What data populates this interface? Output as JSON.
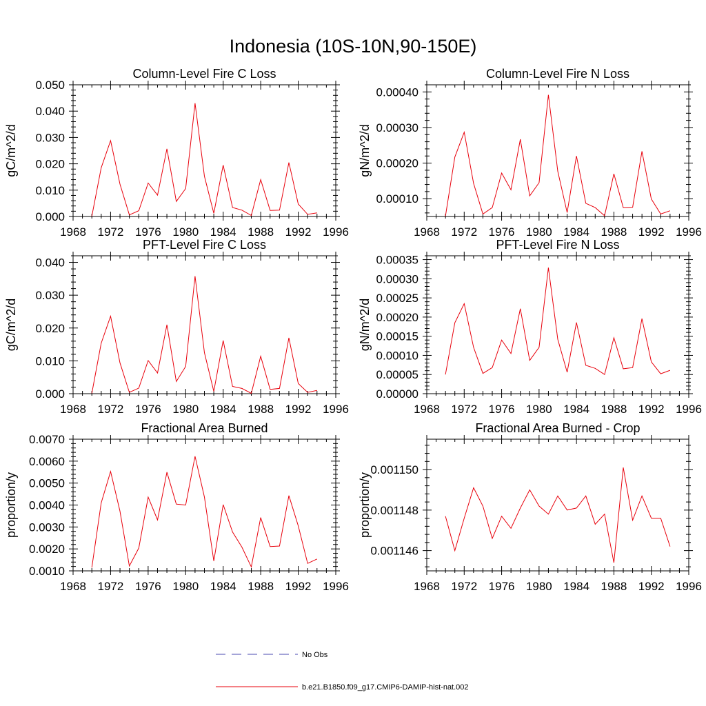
{
  "figure": {
    "title": "Indonesia (10S-10N,90-150E)",
    "legend": {
      "entries": [
        {
          "label": "No Obs",
          "color": "#4a4ab0",
          "style": "dashed"
        },
        {
          "label": "b.e21.B1850.f09_g17.CMIP6-DAMIP-hist-nat.002",
          "color": "#e8000b",
          "style": "solid"
        }
      ]
    }
  },
  "chart_data": [
    {
      "type": "line",
      "title": "Column-Level Fire C Loss",
      "ylabel": "gC/m^2/d",
      "xlim": [
        1968,
        1996
      ],
      "ylim": [
        0,
        0.05
      ],
      "xticks": [
        "1968",
        "1972",
        "1976",
        "1980",
        "1984",
        "1988",
        "1992",
        "1996"
      ],
      "yticks": [
        "0.000",
        "0.010",
        "0.020",
        "0.030",
        "0.040",
        "0.050"
      ],
      "series": [
        {
          "color": "#e8000b",
          "x": [
            1970,
            1971,
            1972,
            1973,
            1974,
            1975,
            1976,
            1977,
            1978,
            1979,
            1980,
            1981,
            1982,
            1983,
            1984,
            1985,
            1986,
            1987,
            1988,
            1989,
            1990,
            1991,
            1992,
            1993,
            1994
          ],
          "values": [
            0.0001,
            0.0185,
            0.0288,
            0.0123,
            0.0006,
            0.0022,
            0.0127,
            0.0081,
            0.0257,
            0.0057,
            0.0106,
            0.043,
            0.0153,
            0.0012,
            0.0195,
            0.0034,
            0.0024,
            0.0004,
            0.014,
            0.0023,
            0.0024,
            0.0205,
            0.0047,
            0.0008,
            0.0014
          ]
        }
      ]
    },
    {
      "type": "line",
      "title": "Column-Level Fire N Loss",
      "ylabel": "gN/m^2/d",
      "xlim": [
        1968,
        1996
      ],
      "ylim": [
        5e-05,
        0.00042
      ],
      "xticks": [
        "1968",
        "1972",
        "1976",
        "1980",
        "1984",
        "1988",
        "1992",
        "1996"
      ],
      "yticks": [
        "0.00010",
        "0.00020",
        "0.00030",
        "0.00040"
      ],
      "series": [
        {
          "color": "#e8000b",
          "x": [
            1970,
            1971,
            1972,
            1973,
            1974,
            1975,
            1976,
            1977,
            1978,
            1979,
            1980,
            1981,
            1982,
            1983,
            1984,
            1985,
            1986,
            1987,
            1988,
            1989,
            1990,
            1991,
            1992,
            1993,
            1994
          ],
          "values": [
            5.1e-05,
            0.000217,
            0.000287,
            0.000143,
            5.7e-05,
            7.5e-05,
            0.000172,
            0.000125,
            0.000267,
            0.000108,
            0.000145,
            0.000392,
            0.000177,
            6.1e-05,
            0.00022,
            8.7e-05,
            7.5e-05,
            5.2e-05,
            0.00017,
            7.5e-05,
            7.6e-05,
            0.000233,
            9.9e-05,
            5.7e-05,
            6.6e-05
          ]
        }
      ]
    },
    {
      "type": "line",
      "title": "PFT-Level Fire C Loss",
      "ylabel": "gC/m^2/d",
      "xlim": [
        1968,
        1996
      ],
      "ylim": [
        0,
        0.042
      ],
      "xticks": [
        "1968",
        "1972",
        "1976",
        "1980",
        "1984",
        "1988",
        "1992",
        "1996"
      ],
      "yticks": [
        "0.000",
        "0.010",
        "0.020",
        "0.030",
        "0.040"
      ],
      "series": [
        {
          "color": "#e8000b",
          "x": [
            1970,
            1971,
            1972,
            1973,
            1974,
            1975,
            1976,
            1977,
            1978,
            1979,
            1980,
            1981,
            1982,
            1983,
            1984,
            1985,
            1986,
            1987,
            1988,
            1989,
            1990,
            1991,
            1992,
            1993,
            1994
          ],
          "values": [
            0.0001,
            0.0154,
            0.0236,
            0.0094,
            0.0004,
            0.0017,
            0.0101,
            0.0063,
            0.021,
            0.0037,
            0.0083,
            0.0358,
            0.0125,
            0.0007,
            0.0162,
            0.0022,
            0.0016,
            0.0001,
            0.0114,
            0.0013,
            0.0016,
            0.017,
            0.0031,
            0.0004,
            0.001
          ]
        }
      ]
    },
    {
      "type": "line",
      "title": "PFT-Level Fire N Loss",
      "ylabel": "gN/m^2/d",
      "xlim": [
        1968,
        1996
      ],
      "ylim": [
        0,
        0.00036
      ],
      "xticks": [
        "1968",
        "1972",
        "1976",
        "1980",
        "1984",
        "1988",
        "1992",
        "1996"
      ],
      "yticks": [
        "0.00000",
        "0.00005",
        "0.00010",
        "0.00015",
        "0.00020",
        "0.00025",
        "0.00030",
        "0.00035"
      ],
      "series": [
        {
          "color": "#e8000b",
          "x": [
            1970,
            1971,
            1972,
            1973,
            1974,
            1975,
            1976,
            1977,
            1978,
            1979,
            1980,
            1981,
            1982,
            1983,
            1984,
            1985,
            1986,
            1987,
            1988,
            1989,
            1990,
            1991,
            1992,
            1993,
            1994
          ],
          "values": [
            5e-05,
            0.000185,
            0.000235,
            0.000121,
            5.3e-05,
            6.8e-05,
            0.00014,
            0.000105,
            0.000222,
            8.7e-05,
            0.000121,
            0.000329,
            0.000142,
            5.6e-05,
            0.000186,
            7.4e-05,
            6.6e-05,
            5e-05,
            0.000146,
            6.5e-05,
            6.8e-05,
            0.000196,
            8.3e-05,
            5.2e-05,
            6.1e-05
          ]
        }
      ]
    },
    {
      "type": "line",
      "title": "Fractional Area Burned",
      "ylabel": "proportion/y",
      "xlim": [
        1968,
        1996
      ],
      "ylim": [
        0.001,
        0.007
      ],
      "xticks": [
        "1968",
        "1972",
        "1976",
        "1980",
        "1984",
        "1988",
        "1992",
        "1996"
      ],
      "yticks": [
        "0.0010",
        "0.0020",
        "0.0030",
        "0.0040",
        "0.0050",
        "0.0060",
        "0.0070"
      ],
      "series": [
        {
          "color": "#e8000b",
          "x": [
            1970,
            1971,
            1972,
            1973,
            1974,
            1975,
            1976,
            1977,
            1978,
            1979,
            1980,
            1981,
            1982,
            1983,
            1984,
            1985,
            1986,
            1987,
            1988,
            1989,
            1990,
            1991,
            1992,
            1993,
            1994
          ],
          "values": [
            0.00115,
            0.0041,
            0.00553,
            0.00372,
            0.00122,
            0.00204,
            0.00436,
            0.00332,
            0.0055,
            0.00404,
            0.004,
            0.00622,
            0.00436,
            0.00145,
            0.00402,
            0.00277,
            0.00208,
            0.00118,
            0.00343,
            0.00211,
            0.00213,
            0.00443,
            0.00305,
            0.00134,
            0.00154
          ]
        }
      ]
    },
    {
      "type": "line",
      "title": "Fractional Area Burned - Crop",
      "ylabel": "proportion/y",
      "xlim": [
        1968,
        1996
      ],
      "ylim": [
        0.001145,
        0.0011515
      ],
      "xticks": [
        "1968",
        "1972",
        "1976",
        "1980",
        "1984",
        "1988",
        "1992",
        "1996"
      ],
      "yticks": [
        "0.001146",
        "0.001148",
        "0.001150"
      ],
      "series": [
        {
          "color": "#e8000b",
          "x": [
            1970,
            1971,
            1972,
            1973,
            1974,
            1975,
            1976,
            1977,
            1978,
            1979,
            1980,
            1981,
            1982,
            1983,
            1984,
            1985,
            1986,
            1987,
            1988,
            1989,
            1990,
            1991,
            1992,
            1993,
            1994
          ],
          "values": [
            0.0011477,
            0.001146,
            0.0011476,
            0.0011491,
            0.0011482,
            0.0011466,
            0.0011477,
            0.0011471,
            0.0011481,
            0.001149,
            0.0011482,
            0.0011478,
            0.0011487,
            0.001148,
            0.0011481,
            0.0011487,
            0.0011473,
            0.0011478,
            0.0011454,
            0.0011501,
            0.0011475,
            0.0011487,
            0.0011476,
            0.0011476,
            0.0011462
          ]
        }
      ]
    }
  ]
}
